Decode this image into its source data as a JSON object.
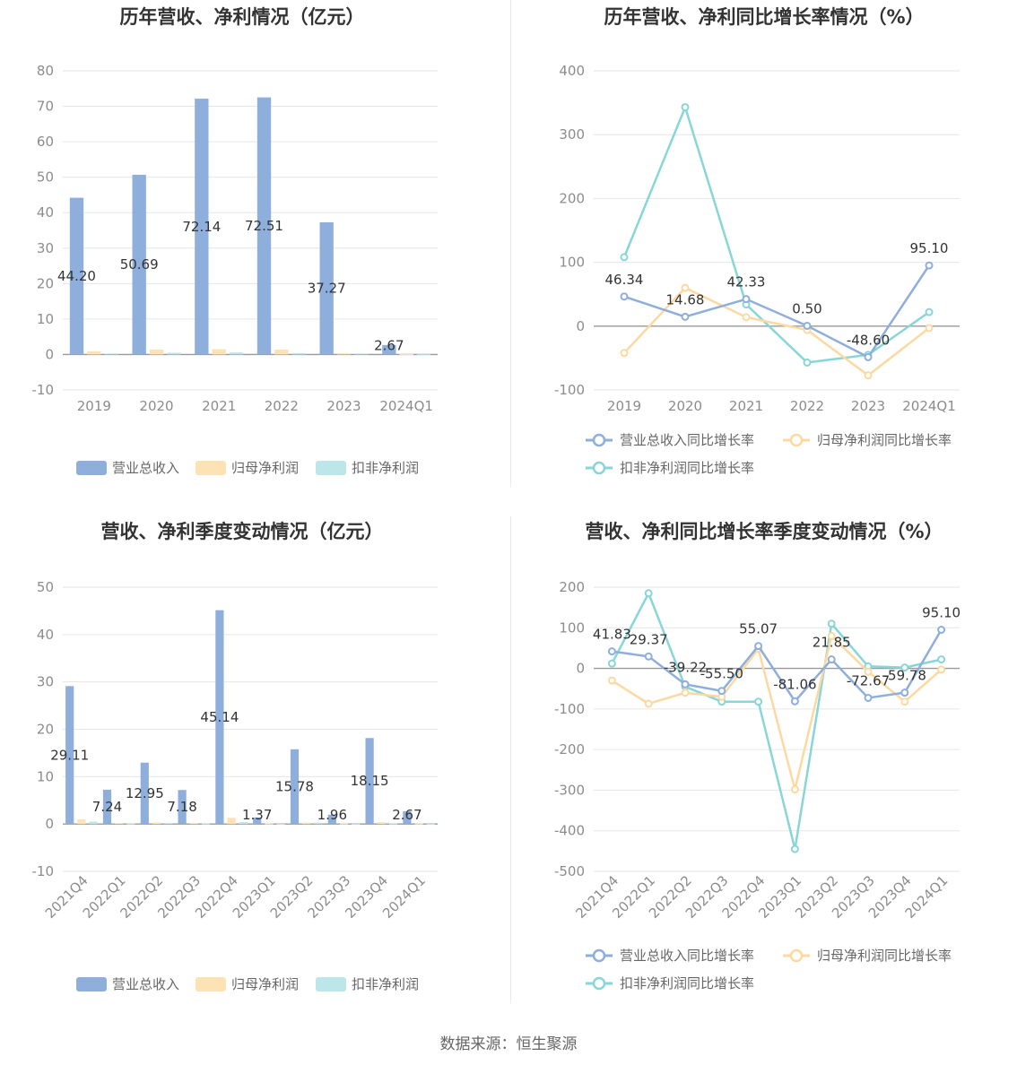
{
  "source": "数据来源：恒生聚源",
  "colors": {
    "revenue": "#8eaedc",
    "netprofit": "#fde2b3",
    "deducted": "#bde6e9",
    "revenue_line": "#8eaedc",
    "netprofit_line": "#fcd9a0",
    "deducted_line": "#88d6d8"
  },
  "chart_data": [
    {
      "id": "annual-amount",
      "type": "bar",
      "title": "历年营收、净利情况（亿元）",
      "categories": [
        "2019",
        "2020",
        "2021",
        "2022",
        "2023",
        "2024Q1"
      ],
      "ylim": [
        -10,
        80
      ],
      "yticks": [
        -10,
        0,
        10,
        20,
        30,
        40,
        50,
        60,
        70,
        80
      ],
      "grid": true,
      "legend_position": "bottom",
      "series": [
        {
          "name": "营业总收入",
          "color": "#8eaedc",
          "values": [
            44.2,
            50.69,
            72.14,
            72.51,
            37.27,
            2.67
          ],
          "labels": [
            "44.20",
            "50.69",
            "72.14",
            "72.51",
            "37.27",
            "2.67"
          ]
        },
        {
          "name": "归母净利润",
          "color": "#fde2b3",
          "values": [
            0.9,
            1.4,
            1.5,
            1.4,
            0.35,
            0.1
          ]
        },
        {
          "name": "扣非净利润",
          "color": "#bde6e9",
          "values": [
            0.3,
            0.5,
            0.6,
            0.4,
            0.3,
            0.05
          ]
        }
      ]
    },
    {
      "id": "annual-growth",
      "type": "line",
      "title": "历年营收、净利同比增长率情况（%）",
      "categories": [
        "2019",
        "2020",
        "2021",
        "2022",
        "2023",
        "2024Q1"
      ],
      "ylim": [
        -100,
        400
      ],
      "yticks": [
        -100,
        0,
        100,
        200,
        300,
        400
      ],
      "grid": true,
      "legend_position": "bottom",
      "series": [
        {
          "name": "营业总收入同比增长率",
          "color": "#8eaedc",
          "values": [
            46.34,
            14.68,
            42.33,
            0.5,
            -48.6,
            95.1
          ],
          "labels": [
            "46.34",
            "14.68",
            "42.33",
            "0.50",
            "-48.60",
            "95.10"
          ]
        },
        {
          "name": "归母净利润同比增长率",
          "color": "#fcd9a0",
          "values": [
            -42,
            60,
            14,
            -6,
            -77,
            -3
          ]
        },
        {
          "name": "扣非净利润同比增长率",
          "color": "#88d6d8",
          "values": [
            108,
            343,
            34,
            -57,
            -45,
            22
          ]
        }
      ]
    },
    {
      "id": "quarterly-amount",
      "type": "bar",
      "title": "营收、净利季度变动情况（亿元）",
      "categories": [
        "2021Q4",
        "2022Q1",
        "2022Q2",
        "2022Q3",
        "2022Q4",
        "2023Q1",
        "2023Q2",
        "2023Q3",
        "2023Q4",
        "2024Q1"
      ],
      "ylim": [
        -10,
        50
      ],
      "yticks": [
        -10,
        0,
        10,
        20,
        30,
        40,
        50
      ],
      "grid": true,
      "legend_position": "bottom",
      "series": [
        {
          "name": "营业总收入",
          "color": "#8eaedc",
          "values": [
            29.11,
            7.24,
            12.95,
            7.18,
            45.14,
            1.37,
            15.78,
            1.96,
            18.15,
            2.67
          ],
          "labels": [
            "29.11",
            "7.24",
            "12.95",
            "7.18",
            "45.14",
            "1.37",
            "15.78",
            "1.96",
            "18.15",
            "2.67"
          ]
        },
        {
          "name": "归母净利润",
          "color": "#fde2b3",
          "values": [
            1.0,
            0.2,
            0.3,
            0.2,
            1.3,
            0.1,
            0.3,
            0.1,
            0.4,
            0.1
          ]
        },
        {
          "name": "扣非净利润",
          "color": "#bde6e9",
          "values": [
            0.5,
            0.1,
            0.2,
            0.1,
            0.4,
            0.05,
            0.3,
            0.05,
            0.1,
            0.05
          ]
        }
      ]
    },
    {
      "id": "quarterly-growth",
      "type": "line",
      "title": "营收、净利同比增长率季度变动情况（%）",
      "categories": [
        "2021Q4",
        "2022Q1",
        "2022Q2",
        "2022Q3",
        "2022Q4",
        "2023Q1",
        "2023Q2",
        "2023Q3",
        "2023Q4",
        "2024Q1"
      ],
      "ylim": [
        -500,
        200
      ],
      "yticks": [
        -500,
        -400,
        -300,
        -200,
        -100,
        0,
        100,
        200
      ],
      "grid": true,
      "legend_position": "bottom",
      "series": [
        {
          "name": "营业总收入同比增长率",
          "color": "#8eaedc",
          "values": [
            41.83,
            29.37,
            -39.22,
            -55.5,
            55.07,
            -81.06,
            21.85,
            -72.67,
            -59.78,
            95.1
          ],
          "labels": [
            "41.83",
            "29.37",
            "-39.22",
            "-55.50",
            "55.07",
            "-81.06",
            "21.85",
            "-72.67",
            "-59.78",
            "95.10"
          ]
        },
        {
          "name": "归母净利润同比增长率",
          "color": "#fcd9a0",
          "values": [
            -30,
            -87,
            -60,
            -70,
            48,
            -298,
            80,
            -8,
            -82,
            -3
          ]
        },
        {
          "name": "扣非净利润同比增长率",
          "color": "#88d6d8",
          "values": [
            12,
            185,
            -45,
            -82,
            -82,
            -445,
            110,
            5,
            2,
            22
          ]
        }
      ]
    }
  ]
}
